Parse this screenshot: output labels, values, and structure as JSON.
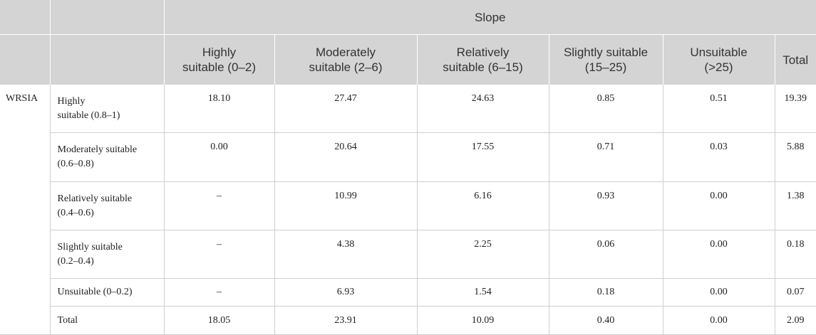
{
  "header": {
    "group_label": "Slope",
    "columns": [
      {
        "line1": "Highly",
        "line2": "suitable (0–2)"
      },
      {
        "line1": "Moderately",
        "line2": "suitable (2–6)"
      },
      {
        "line1": "Relatively",
        "line2": "suitable (6–15)"
      },
      {
        "line1": "Slightly suitable",
        "line2": "(15–25)"
      },
      {
        "line1": "Unsuitable",
        "line2": "(>25)"
      },
      {
        "line1": "Total",
        "line2": ""
      }
    ]
  },
  "row_group_label": "WRSIA",
  "rows": [
    {
      "label1": "Highly",
      "label2": "suitable (0.8–1)",
      "values": [
        "18.10",
        "27.47",
        "24.63",
        "0.85",
        "0.51",
        "19.39"
      ]
    },
    {
      "label1": "Moderately suitable",
      "label2": "(0.6–0.8)",
      "values": [
        "0.00",
        "20.64",
        "17.55",
        "0.71",
        "0.03",
        "5.88"
      ]
    },
    {
      "label1": "Relatively suitable",
      "label2": "(0.4–0.6)",
      "values": [
        "–",
        "10.99",
        "6.16",
        "0.93",
        "0.00",
        "1.38"
      ]
    },
    {
      "label1": "Slightly suitable",
      "label2": "(0.2–0.4)",
      "values": [
        "–",
        "4.38",
        "2.25",
        "0.06",
        "0.00",
        "0.18"
      ]
    },
    {
      "label1": "Unsuitable (0–0.2)",
      "label2": "",
      "values": [
        "–",
        "6.93",
        "1.54",
        "0.18",
        "0.00",
        "0.07"
      ]
    },
    {
      "label1": "Total",
      "label2": "",
      "values": [
        "18.05",
        "23.91",
        "10.09",
        "0.40",
        "0.00",
        "2.09"
      ]
    }
  ]
}
